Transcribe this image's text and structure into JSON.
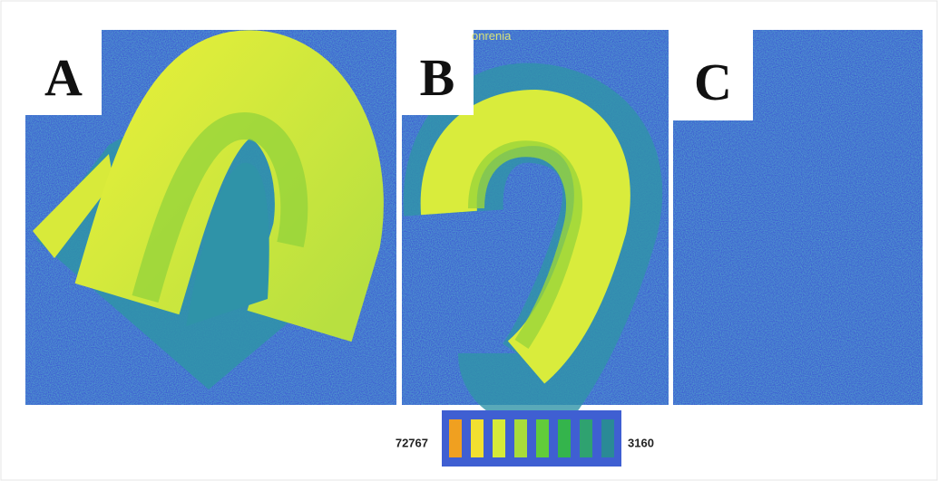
{
  "panels": [
    {
      "label": "A"
    },
    {
      "label": "B"
    },
    {
      "label": "C"
    }
  ],
  "overlay_text": "onrenia",
  "colorbar": {
    "max_label": "72767",
    "min_label": "3160"
  }
}
